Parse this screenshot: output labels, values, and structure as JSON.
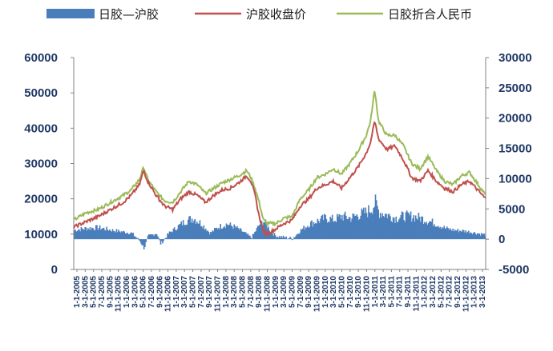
{
  "chart_data": {
    "type": "bar+line",
    "title": "",
    "legend": {
      "placement": "top",
      "entries": [
        {
          "key": "spread",
          "label": "日胶—沪胶",
          "color": "#4a7ebb",
          "mark": "area"
        },
        {
          "key": "shfe",
          "label": "沪胶收盘价",
          "color": "#c0504d",
          "mark": "line"
        },
        {
          "key": "tocom",
          "label": "日胶折合人民币",
          "color": "#9bbb59",
          "mark": "line"
        }
      ]
    },
    "y_left": {
      "min": 0,
      "max": 60000,
      "ticks": [
        "0",
        "10000",
        "20000",
        "30000",
        "40000",
        "50000",
        "60000"
      ]
    },
    "y_right": {
      "min": -5000,
      "max": 30000,
      "ticks": [
        "-5000",
        "0",
        "5000",
        "10000",
        "15000",
        "20000",
        "25000",
        "30000"
      ]
    },
    "x_labels": [
      "1-1-2005",
      "3-1-2005",
      "5-1-2005",
      "7-1-2005",
      "9-1-2005",
      "11-1-2005",
      "1-1-2006",
      "3-1-2006",
      "5-1-2006",
      "7-1-2006",
      "9-1-2006",
      "11-1-2006",
      "1-1-2007",
      "3-1-2007",
      "5-1-2007",
      "7-1-2007",
      "9-1-2007",
      "11-1-2007",
      "1-1-2008",
      "3-1-2008",
      "5-1-2008",
      "7-1-2008",
      "9-1-2008",
      "11-1-2008",
      "1-1-2009",
      "3-1-2009",
      "5-1-2009",
      "7-1-2009",
      "9-1-2009",
      "11-1-2009",
      "1-1-2010",
      "3-1-2010",
      "5-1-2010",
      "7-1-2010",
      "9-1-2010",
      "11-1-2010",
      "1-1-2011",
      "3-1-2011",
      "5-1-2011",
      "7-1-2011",
      "9-1-2011",
      "11-1-2011",
      "1-1-2012",
      "3-1-2012",
      "5-1-2012",
      "7-1-2012",
      "9-1-2012",
      "11-1-2012",
      "1-1-2013",
      "3-1-2013"
    ],
    "x_start": "2005-01-01",
    "x_end": "2013-04-30",
    "series": [
      {
        "key": "spread",
        "axis": "right",
        "points": [
          [
            "2005-01-01",
            1500
          ],
          [
            "2005-04-01",
            1800
          ],
          [
            "2005-07-01",
            1900
          ],
          [
            "2005-10-01",
            1500
          ],
          [
            "2006-01-01",
            1200
          ],
          [
            "2006-03-01",
            1000
          ],
          [
            "2006-05-01",
            -300
          ],
          [
            "2006-06-01",
            -1500
          ],
          [
            "2006-07-01",
            500
          ],
          [
            "2006-09-01",
            1000
          ],
          [
            "2006-10-01",
            -800
          ],
          [
            "2006-12-01",
            1000
          ],
          [
            "2007-02-01",
            2000
          ],
          [
            "2007-04-01",
            3000
          ],
          [
            "2007-06-01",
            3500
          ],
          [
            "2007-08-01",
            2500
          ],
          [
            "2007-10-01",
            1000
          ],
          [
            "2007-12-01",
            2000
          ],
          [
            "2008-02-01",
            2500
          ],
          [
            "2008-04-01",
            2000
          ],
          [
            "2008-06-01",
            1200
          ],
          [
            "2008-08-01",
            200
          ],
          [
            "2008-10-01",
            2500
          ],
          [
            "2008-11-01",
            3000
          ],
          [
            "2009-01-01",
            1000
          ],
          [
            "2009-02-01",
            500
          ],
          [
            "2009-04-01",
            300
          ],
          [
            "2009-06-01",
            100
          ],
          [
            "2009-08-01",
            1500
          ],
          [
            "2009-10-01",
            2500
          ],
          [
            "2009-12-01",
            3000
          ],
          [
            "2010-02-01",
            3500
          ],
          [
            "2010-04-01",
            3200
          ],
          [
            "2010-06-01",
            3800
          ],
          [
            "2010-08-01",
            3500
          ],
          [
            "2010-10-01",
            4000
          ],
          [
            "2010-12-01",
            4500
          ],
          [
            "2011-01-01",
            5000
          ],
          [
            "2011-02-01",
            6000
          ],
          [
            "2011-03-01",
            4500
          ],
          [
            "2011-05-01",
            4000
          ],
          [
            "2011-07-01",
            3500
          ],
          [
            "2011-09-01",
            3800
          ],
          [
            "2011-11-01",
            3800
          ],
          [
            "2012-01-01",
            3500
          ],
          [
            "2012-03-01",
            3000
          ],
          [
            "2012-05-01",
            2500
          ],
          [
            "2012-07-01",
            1800
          ],
          [
            "2012-09-01",
            1500
          ],
          [
            "2012-11-01",
            1400
          ],
          [
            "2013-01-01",
            1200
          ],
          [
            "2013-04-30",
            700
          ]
        ]
      },
      {
        "key": "shfe",
        "axis": "left",
        "points": [
          [
            "2005-01-01",
            12000
          ],
          [
            "2005-04-01",
            13500
          ],
          [
            "2005-07-01",
            15000
          ],
          [
            "2005-10-01",
            17000
          ],
          [
            "2006-01-01",
            19000
          ],
          [
            "2006-03-01",
            21000
          ],
          [
            "2006-05-01",
            24000
          ],
          [
            "2006-06-01",
            28000
          ],
          [
            "2006-07-01",
            25000
          ],
          [
            "2006-09-01",
            21000
          ],
          [
            "2006-11-01",
            18000
          ],
          [
            "2007-01-01",
            17000
          ],
          [
            "2007-03-01",
            20000
          ],
          [
            "2007-05-01",
            22000
          ],
          [
            "2007-07-01",
            21000
          ],
          [
            "2007-09-01",
            19000
          ],
          [
            "2007-11-01",
            21000
          ],
          [
            "2008-01-01",
            22500
          ],
          [
            "2008-03-01",
            23000
          ],
          [
            "2008-05-01",
            24500
          ],
          [
            "2008-07-01",
            26500
          ],
          [
            "2008-08-01",
            25000
          ],
          [
            "2008-09-01",
            21000
          ],
          [
            "2008-10-01",
            15000
          ],
          [
            "2008-11-01",
            11000
          ],
          [
            "2008-12-01",
            10000
          ],
          [
            "2009-02-01",
            11500
          ],
          [
            "2009-04-01",
            13000
          ],
          [
            "2009-06-01",
            14000
          ],
          [
            "2009-08-01",
            18000
          ],
          [
            "2009-10-01",
            20000
          ],
          [
            "2009-12-01",
            23000
          ],
          [
            "2010-02-01",
            24000
          ],
          [
            "2010-04-01",
            25000
          ],
          [
            "2010-06-01",
            23000
          ],
          [
            "2010-08-01",
            26000
          ],
          [
            "2010-10-01",
            29000
          ],
          [
            "2010-12-01",
            33000
          ],
          [
            "2011-01-01",
            36000
          ],
          [
            "2011-02-01",
            42000
          ],
          [
            "2011-03-01",
            37000
          ],
          [
            "2011-05-01",
            34000
          ],
          [
            "2011-07-01",
            35000
          ],
          [
            "2011-09-01",
            31000
          ],
          [
            "2011-11-01",
            26000
          ],
          [
            "2012-01-01",
            25000
          ],
          [
            "2012-03-01",
            28000
          ],
          [
            "2012-05-01",
            25000
          ],
          [
            "2012-07-01",
            23000
          ],
          [
            "2012-09-01",
            22000
          ],
          [
            "2012-11-01",
            24000
          ],
          [
            "2013-01-01",
            25000
          ],
          [
            "2013-04-30",
            20000
          ]
        ]
      },
      {
        "key": "tocom",
        "axis": "left",
        "points": [
          [
            "2005-01-01",
            14000
          ],
          [
            "2005-04-01",
            16000
          ],
          [
            "2005-07-01",
            17000
          ],
          [
            "2005-10-01",
            19000
          ],
          [
            "2006-01-01",
            21000
          ],
          [
            "2006-03-01",
            22500
          ],
          [
            "2006-05-01",
            25500
          ],
          [
            "2006-06-01",
            29000
          ],
          [
            "2006-07-01",
            25500
          ],
          [
            "2006-09-01",
            22000
          ],
          [
            "2006-11-01",
            19500
          ],
          [
            "2007-01-01",
            19000
          ],
          [
            "2007-03-01",
            22000
          ],
          [
            "2007-05-01",
            25000
          ],
          [
            "2007-07-01",
            24000
          ],
          [
            "2007-09-01",
            21500
          ],
          [
            "2007-11-01",
            23000
          ],
          [
            "2008-01-01",
            24500
          ],
          [
            "2008-03-01",
            25500
          ],
          [
            "2008-05-01",
            26500
          ],
          [
            "2008-07-01",
            28000
          ],
          [
            "2008-08-01",
            26000
          ],
          [
            "2008-09-01",
            23000
          ],
          [
            "2008-10-01",
            19000
          ],
          [
            "2008-11-01",
            14000
          ],
          [
            "2008-12-01",
            13000
          ],
          [
            "2009-02-01",
            13000
          ],
          [
            "2009-04-01",
            14500
          ],
          [
            "2009-06-01",
            15000
          ],
          [
            "2009-08-01",
            20000
          ],
          [
            "2009-10-01",
            22500
          ],
          [
            "2009-12-01",
            26000
          ],
          [
            "2010-02-01",
            27000
          ],
          [
            "2010-04-01",
            28500
          ],
          [
            "2010-06-01",
            27000
          ],
          [
            "2010-08-01",
            30000
          ],
          [
            "2010-10-01",
            33500
          ],
          [
            "2010-12-01",
            38000
          ],
          [
            "2011-01-01",
            42000
          ],
          [
            "2011-02-01",
            51000
          ],
          [
            "2011-03-01",
            42000
          ],
          [
            "2011-05-01",
            38000
          ],
          [
            "2011-07-01",
            38000
          ],
          [
            "2011-09-01",
            35000
          ],
          [
            "2011-11-01",
            30000
          ],
          [
            "2012-01-01",
            28500
          ],
          [
            "2012-03-01",
            32000
          ],
          [
            "2012-05-01",
            28000
          ],
          [
            "2012-07-01",
            25000
          ],
          [
            "2012-09-01",
            24000
          ],
          [
            "2012-11-01",
            26500
          ],
          [
            "2013-01-01",
            27500
          ],
          [
            "2013-04-30",
            21000
          ]
        ]
      }
    ]
  }
}
